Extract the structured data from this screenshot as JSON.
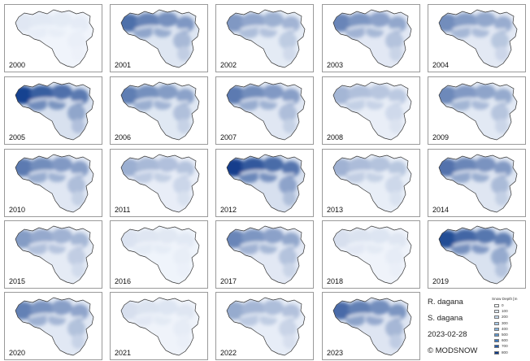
{
  "panels": [
    {
      "year": "2000",
      "intensity": 0.08
    },
    {
      "year": "2001",
      "intensity": 0.72
    },
    {
      "year": "2002",
      "intensity": 0.5
    },
    {
      "year": "2003",
      "intensity": 0.6
    },
    {
      "year": "2004",
      "intensity": 0.56
    },
    {
      "year": "2005",
      "intensity": 0.95
    },
    {
      "year": "2006",
      "intensity": 0.64
    },
    {
      "year": "2007",
      "intensity": 0.66
    },
    {
      "year": "2008",
      "intensity": 0.34
    },
    {
      "year": "2009",
      "intensity": 0.58
    },
    {
      "year": "2010",
      "intensity": 0.66
    },
    {
      "year": "2011",
      "intensity": 0.38
    },
    {
      "year": "2012",
      "intensity": 0.98
    },
    {
      "year": "2013",
      "intensity": 0.36
    },
    {
      "year": "2014",
      "intensity": 0.7
    },
    {
      "year": "2015",
      "intensity": 0.48
    },
    {
      "year": "2016",
      "intensity": 0.1
    },
    {
      "year": "2017",
      "intensity": 0.6
    },
    {
      "year": "2018",
      "intensity": 0.12
    },
    {
      "year": "2019",
      "intensity": 0.9
    },
    {
      "year": "2020",
      "intensity": 0.62
    },
    {
      "year": "2021",
      "intensity": 0.12
    },
    {
      "year": "2022",
      "intensity": 0.4
    },
    {
      "year": "2023",
      "intensity": 0.74
    }
  ],
  "info": {
    "river": "R. dagana",
    "station": "S. dagana",
    "date": "2023-02-28",
    "credit": "© MODSNOW"
  },
  "legend": {
    "title": "Snow Depth [m",
    "items": [
      {
        "label": "0",
        "color": "#f4f8fd"
      },
      {
        "label": "100",
        "color": "#dfeaf7"
      },
      {
        "label": "200",
        "color": "#c6dbef"
      },
      {
        "label": "300",
        "color": "#a9c9e6"
      },
      {
        "label": "400",
        "color": "#85b3dc"
      },
      {
        "label": "500",
        "color": "#5f97cd"
      },
      {
        "label": "600",
        "color": "#3b78bf"
      },
      {
        "label": "700",
        "color": "#2258a8"
      },
      {
        "label": "800",
        "color": "#0e3a86"
      }
    ]
  },
  "colors": {
    "light": "#f2f6fc",
    "dark": "#0d3a8a",
    "outline": "#333333"
  }
}
